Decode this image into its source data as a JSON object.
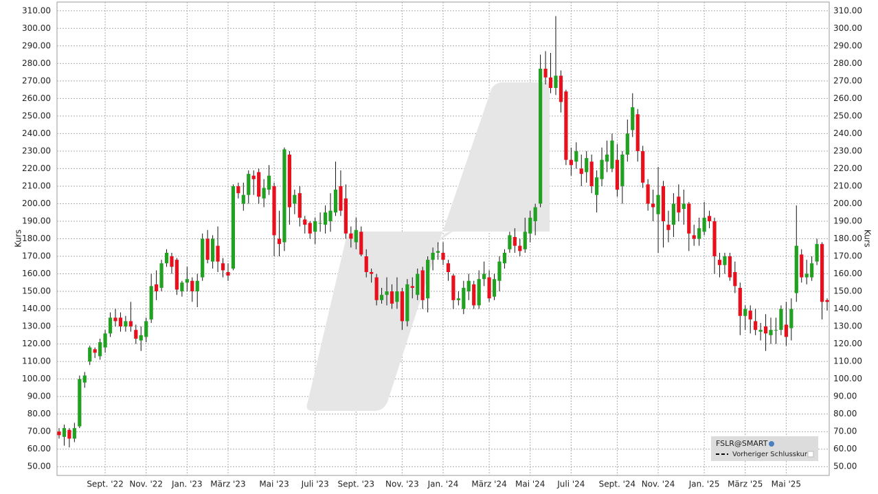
{
  "chart_data": {
    "type": "candlestick",
    "y_label": "Kurs",
    "y2_label": "Kurs",
    "categories": [
      null,
      null,
      null,
      null,
      null,
      null,
      null,
      null,
      null,
      "Sept. '22",
      null,
      null,
      null,
      null,
      null,
      null,
      null,
      "Nov. '22",
      null,
      null,
      null,
      null,
      null,
      null,
      null,
      "Jan. '23",
      null,
      null,
      null,
      null,
      null,
      null,
      null,
      "März '23",
      null,
      null,
      null,
      null,
      null,
      null,
      null,
      null,
      "Mai '23",
      null,
      null,
      null,
      null,
      null,
      null,
      null,
      "Juli '23",
      null,
      null,
      null,
      null,
      null,
      null,
      null,
      "Sept. '23",
      null,
      null,
      null,
      null,
      null,
      null,
      null,
      null,
      "Nov. '23",
      null,
      null,
      null,
      null,
      null,
      null,
      null,
      "Jan. '24",
      null,
      null,
      null,
      null,
      null,
      null,
      null,
      null,
      "März '24",
      null,
      null,
      null,
      null,
      null,
      null,
      null,
      "Mai '24",
      null,
      null,
      null,
      null,
      null,
      null,
      null,
      "Juli '24",
      null,
      null,
      null,
      null,
      null,
      null,
      null,
      null,
      "Sept. '24",
      null,
      null,
      null,
      null,
      null,
      null,
      null,
      "Nov. '24",
      null,
      null,
      null,
      null,
      null,
      null,
      null,
      null,
      "Jan. '25",
      null,
      null,
      null,
      null,
      null,
      null,
      null,
      "März '25",
      null,
      null,
      null,
      null,
      null,
      null,
      null,
      "Mai '25",
      null,
      null,
      null,
      null,
      null,
      null,
      null,
      null
    ],
    "series": [
      {
        "name": "FSLR@SMART",
        "up_color": "#21a021",
        "down_color": "#e8101c",
        "open": [
          70,
          67,
          71,
          66,
          73,
          98,
          110,
          117,
          113,
          118,
          126,
          135,
          135,
          130,
          133,
          128,
          122,
          124,
          134,
          154,
          152,
          166,
          170,
          168,
          150,
          155,
          156,
          150,
          158,
          180,
          167,
          176,
          166,
          161,
          163,
          210,
          200,
          205,
          216,
          218,
          203,
          208,
          210,
          180,
          178,
          228,
          200,
          206,
          191,
          189,
          184,
          189,
          188,
          190,
          195,
          210,
          203,
          183,
          178,
          184,
          170,
          161,
          158,
          145,
          148,
          150,
          144,
          150,
          133,
          153,
          148,
          162,
          146,
          168,
          172,
          172,
          166,
          159,
          145,
          140,
          150,
          154,
          142,
          157,
          158,
          147,
          156,
          166,
          174,
          181,
          176,
          174,
          183,
          190,
          200,
          277,
          272,
          266,
          273,
          264,
          225,
          224,
          220,
          218,
          224,
          205,
          214,
          224,
          220,
          225,
          210,
          228,
          242,
          251,
          230,
          211,
          200,
          194,
          210,
          188,
          188,
          204,
          197,
          200,
          182,
          180,
          184,
          193,
          190,
          168,
          165,
          170,
          161,
          152,
          136,
          139,
          133,
          127,
          130,
          125,
          128,
          128,
          131,
          129,
          149,
          171,
          158,
          158,
          167,
          177,
          145
        ],
        "high": [
          72,
          74,
          72,
          75,
          102,
          104,
          119,
          118,
          123,
          128,
          138,
          140,
          138,
          136,
          144,
          131,
          130,
          135,
          160,
          162,
          168,
          174,
          172,
          169,
          156,
          164,
          158,
          160,
          183,
          185,
          182,
          187,
          169,
          166,
          211,
          212,
          212,
          219,
          219,
          220,
          214,
          222,
          212,
          196,
          232,
          230,
          208,
          210,
          193,
          190,
          192,
          195,
          199,
          206,
          224,
          219,
          211,
          187,
          192,
          187,
          174,
          163,
          160,
          152,
          158,
          154,
          158,
          152,
          157,
          158,
          163,
          164,
          170,
          175,
          178,
          178,
          168,
          160,
          150,
          156,
          160,
          156,
          162,
          167,
          162,
          160,
          170,
          174,
          184,
          186,
          180,
          192,
          196,
          200,
          285,
          287,
          286,
          307,
          276,
          265,
          232,
          235,
          228,
          230,
          228,
          219,
          232,
          236,
          240,
          234,
          230,
          248,
          263,
          254,
          233,
          214,
          208,
          221,
          213,
          196,
          206,
          211,
          208,
          201,
          188,
          192,
          201,
          196,
          192,
          172,
          172,
          172,
          167,
          155,
          142,
          142,
          140,
          132,
          137,
          135,
          135,
          142,
          144,
          146,
          199,
          174,
          168,
          170,
          180,
          178,
          146
        ],
        "low": [
          66,
          62,
          61,
          64,
          72,
          95,
          108,
          112,
          111,
          115,
          124,
          130,
          127,
          127,
          127,
          120,
          116,
          121,
          132,
          145,
          150,
          164,
          160,
          148,
          147,
          150,
          144,
          141,
          156,
          166,
          163,
          161,
          158,
          156,
          162,
          203,
          196,
          200,
          205,
          200,
          198,
          205,
          170,
          170,
          173,
          188,
          194,
          187,
          183,
          180,
          177,
          184,
          183,
          184,
          193,
          193,
          180,
          175,
          174,
          170,
          158,
          155,
          142,
          143,
          142,
          140,
          140,
          128,
          130,
          146,
          145,
          140,
          138,
          162,
          168,
          165,
          156,
          140,
          142,
          137,
          145,
          140,
          140,
          153,
          144,
          145,
          150,
          163,
          172,
          172,
          170,
          172,
          178,
          182,
          198,
          268,
          263,
          262,
          252,
          222,
          216,
          220,
          210,
          212,
          206,
          195,
          210,
          218,
          218,
          204,
          200,
          224,
          238,
          224,
          209,
          196,
          190,
          172,
          175,
          178,
          181,
          190,
          188,
          173,
          176,
          176,
          182,
          186,
          160,
          158,
          160,
          156,
          149,
          125,
          128,
          126,
          125,
          122,
          116,
          120,
          120,
          125,
          119,
          122,
          144,
          155,
          154,
          156,
          165,
          134,
          139
        ],
        "close": [
          68,
          72,
          66,
          72,
          100,
          102,
          118,
          115,
          121,
          126,
          135,
          133,
          130,
          133,
          130,
          123,
          125,
          133,
          153,
          150,
          166,
          172,
          164,
          151,
          155,
          157,
          150,
          156,
          180,
          168,
          180,
          167,
          162,
          159,
          210,
          206,
          205,
          217,
          214,
          204,
          209,
          216,
          182,
          177,
          231,
          198,
          205,
          192,
          188,
          183,
          190,
          189,
          195,
          196,
          208,
          196,
          183,
          180,
          185,
          171,
          161,
          160,
          145,
          148,
          150,
          143,
          150,
          133,
          154,
          152,
          160,
          145,
          168,
          172,
          173,
          168,
          161,
          145,
          146,
          152,
          156,
          142,
          157,
          160,
          146,
          157,
          167,
          172,
          182,
          176,
          173,
          184,
          192,
          198,
          277,
          272,
          266,
          273,
          258,
          225,
          222,
          230,
          217,
          226,
          210,
          215,
          225,
          228,
          236,
          208,
          228,
          240,
          255,
          230,
          212,
          200,
          198,
          205,
          190,
          185,
          200,
          195,
          200,
          183,
          180,
          186,
          192,
          190,
          170,
          165,
          170,
          158,
          153,
          136,
          140,
          134,
          128,
          128,
          126,
          128,
          128,
          140,
          124,
          140,
          176,
          158,
          160,
          166,
          177,
          144,
          144
        ]
      }
    ],
    "reference_line": {
      "name": "Vorheriger Schlusskurs"
    },
    "ylim": [
      45,
      315
    ],
    "yticks": [
      {
        "value": 50,
        "label": "50.00"
      },
      {
        "value": 60,
        "label": "60.00"
      },
      {
        "value": 70,
        "label": "70.00"
      },
      {
        "value": 80,
        "label": "80.00"
      },
      {
        "value": 90,
        "label": "90.00"
      },
      {
        "value": 100,
        "label": "100.00"
      },
      {
        "value": 110,
        "label": "110.00"
      },
      {
        "value": 120,
        "label": "120.00"
      },
      {
        "value": 130,
        "label": "130.00"
      },
      {
        "value": 140,
        "label": "140.00"
      },
      {
        "value": 150,
        "label": "150.00"
      },
      {
        "value": 160,
        "label": "160.00"
      },
      {
        "value": 170,
        "label": "170.00"
      },
      {
        "value": 180,
        "label": "180.00"
      },
      {
        "value": 190,
        "label": "190.00"
      },
      {
        "value": 200,
        "label": "200.00"
      },
      {
        "value": 210,
        "label": "210.00"
      },
      {
        "value": 220,
        "label": "220.00"
      },
      {
        "value": 230,
        "label": "230.00"
      },
      {
        "value": 240,
        "label": "240.00"
      },
      {
        "value": 250,
        "label": "250.00"
      },
      {
        "value": 260,
        "label": "260.00"
      },
      {
        "value": 270,
        "label": "270.00"
      },
      {
        "value": 280,
        "label": "280.00"
      },
      {
        "value": 290,
        "label": "290.00"
      },
      {
        "value": 300,
        "label": "300.00"
      },
      {
        "value": 310,
        "label": "310.00"
      }
    ],
    "grid": true
  }
}
